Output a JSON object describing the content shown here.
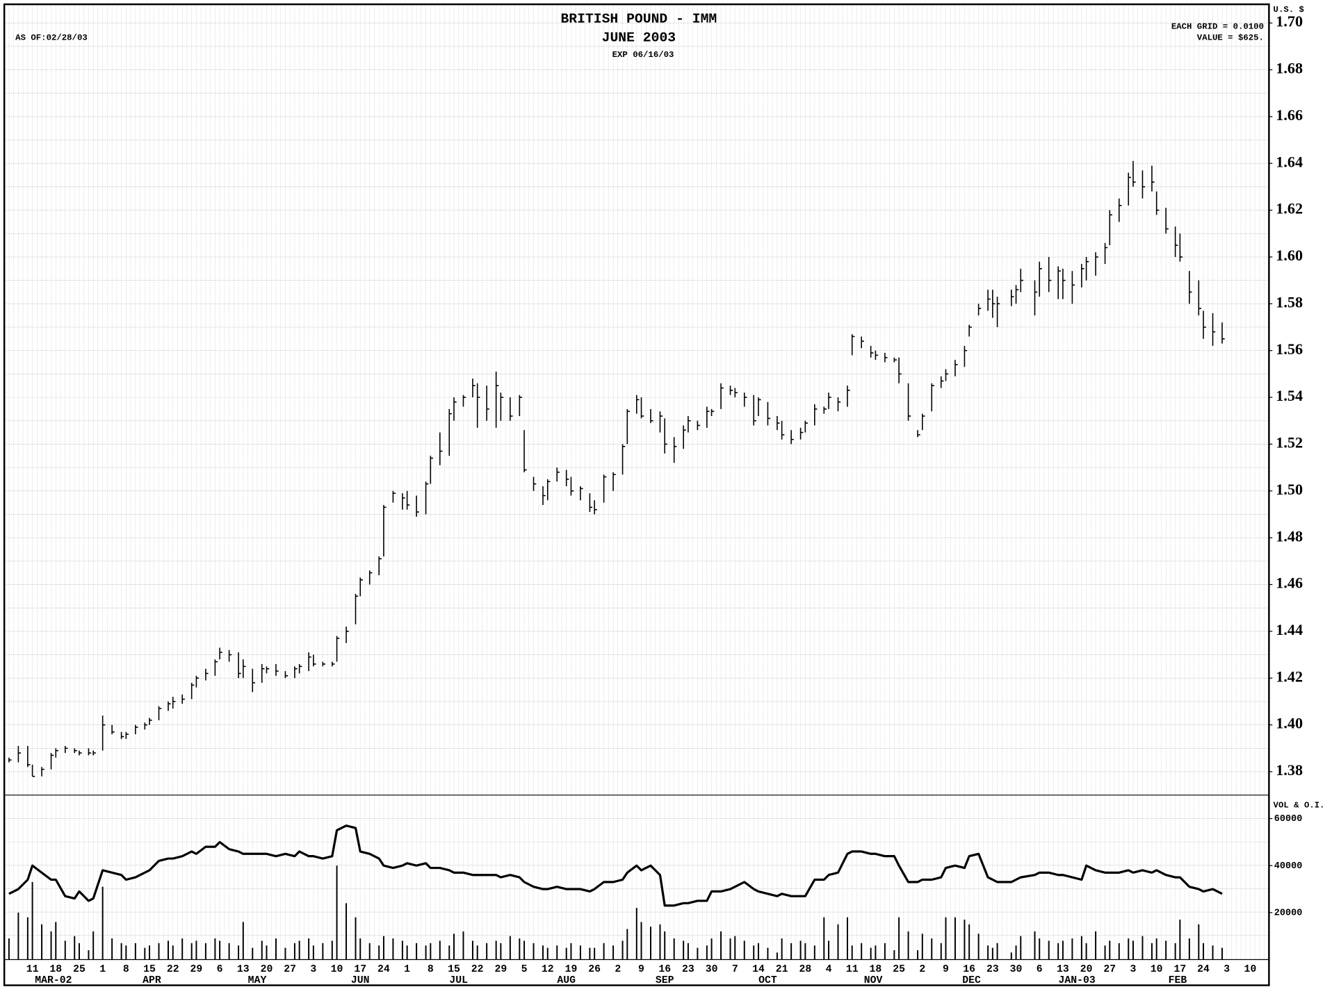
{
  "chart_data": {
    "type": "ohlc",
    "title": "BRITISH POUND - IMM",
    "subtitle": "JUNE 2003",
    "expiry": "EXP 06/16/03",
    "as_of": "AS OF:02/28/03",
    "grid_note": "EACH GRID = 0.0100",
    "value_note": "VALUE = $625.",
    "y_axis_label": "U.S. $",
    "volume_label": "VOL & O.I.",
    "color": "#000000",
    "grid": true,
    "grid_step": 0.01,
    "ylim": [
      1.37,
      1.708
    ],
    "yticks": [
      1.38,
      {
        "value": 1.4,
        "label": "1.40"
      },
      1.42,
      1.44,
      1.46,
      1.48,
      {
        "value": 1.5,
        "label": "1.50"
      },
      1.52,
      1.54,
      1.56,
      1.58,
      {
        "value": 1.6,
        "label": "1.60"
      },
      1.62,
      1.64,
      1.66,
      1.68,
      {
        "value": 1.7,
        "label": "1.70"
      }
    ],
    "vol_ylim": [
      0,
      70000
    ],
    "vol_yticks": [
      20000,
      40000,
      60000
    ],
    "xlim": [
      "2002-03-01",
      "2003-03-14"
    ],
    "xticks": [
      {
        "value": "2002-03-11",
        "label": "11"
      },
      {
        "value": "2002-03-18",
        "label": "18"
      },
      {
        "value": "2002-03-25",
        "label": "25"
      },
      {
        "value": "2002-04-01",
        "label": "1"
      },
      {
        "value": "2002-04-08",
        "label": "8"
      },
      {
        "value": "2002-04-15",
        "label": "15"
      },
      {
        "value": "2002-04-22",
        "label": "22"
      },
      {
        "value": "2002-04-29",
        "label": "29"
      },
      {
        "value": "2002-05-06",
        "label": "6"
      },
      {
        "value": "2002-05-13",
        "label": "13"
      },
      {
        "value": "2002-05-20",
        "label": "20"
      },
      {
        "value": "2002-05-27",
        "label": "27"
      },
      {
        "value": "2002-06-03",
        "label": "3"
      },
      {
        "value": "2002-06-10",
        "label": "10"
      },
      {
        "value": "2002-06-17",
        "label": "17"
      },
      {
        "value": "2002-06-24",
        "label": "24"
      },
      {
        "value": "2002-07-01",
        "label": "1"
      },
      {
        "value": "2002-07-08",
        "label": "8"
      },
      {
        "value": "2002-07-15",
        "label": "15"
      },
      {
        "value": "2002-07-22",
        "label": "22"
      },
      {
        "value": "2002-07-29",
        "label": "29"
      },
      {
        "value": "2002-08-05",
        "label": "5"
      },
      {
        "value": "2002-08-12",
        "label": "12"
      },
      {
        "value": "2002-08-19",
        "label": "19"
      },
      {
        "value": "2002-08-26",
        "label": "26"
      },
      {
        "value": "2002-09-02",
        "label": "2"
      },
      {
        "value": "2002-09-09",
        "label": "9"
      },
      {
        "value": "2002-09-16",
        "label": "16"
      },
      {
        "value": "2002-09-23",
        "label": "23"
      },
      {
        "value": "2002-09-30",
        "label": "30"
      },
      {
        "value": "2002-10-07",
        "label": "7"
      },
      {
        "value": "2002-10-14",
        "label": "14"
      },
      {
        "value": "2002-10-21",
        "label": "21"
      },
      {
        "value": "2002-10-28",
        "label": "28"
      },
      {
        "value": "2002-11-04",
        "label": "4"
      },
      {
        "value": "2002-11-11",
        "label": "11"
      },
      {
        "value": "2002-11-18",
        "label": "18"
      },
      {
        "value": "2002-11-25",
        "label": "25"
      },
      {
        "value": "2002-12-02",
        "label": "2"
      },
      {
        "value": "2002-12-09",
        "label": "9"
      },
      {
        "value": "2002-12-16",
        "label": "16"
      },
      {
        "value": "2002-12-23",
        "label": "23"
      },
      {
        "value": "2002-12-30",
        "label": "30"
      },
      {
        "value": "2003-01-06",
        "label": "6"
      },
      {
        "value": "2003-01-13",
        "label": "13"
      },
      {
        "value": "2003-01-20",
        "label": "20"
      },
      {
        "value": "2003-01-27",
        "label": "27"
      },
      {
        "value": "2003-02-03",
        "label": "3"
      },
      {
        "value": "2003-02-10",
        "label": "10"
      },
      {
        "value": "2003-02-17",
        "label": "17"
      },
      {
        "value": "2003-02-24",
        "label": "24"
      },
      {
        "value": "2003-03-03",
        "label": "3"
      },
      {
        "value": "2003-03-10",
        "label": "10"
      }
    ],
    "month_ticks": [
      {
        "value": "2002-03",
        "label": "MAR-02"
      },
      {
        "value": "2002-04",
        "label": "APR"
      },
      {
        "value": "2002-05",
        "label": "MAY"
      },
      {
        "value": "2002-06",
        "label": "JUN"
      },
      {
        "value": "2002-07",
        "label": "JUL"
      },
      {
        "value": "2002-08",
        "label": "AUG"
      },
      {
        "value": "2002-09",
        "label": "SEP"
      },
      {
        "value": "2002-10",
        "label": "OCT"
      },
      {
        "value": "2002-11",
        "label": "NOV"
      },
      {
        "value": "2002-12",
        "label": "DEC"
      },
      {
        "value": "2003-01",
        "label": "JAN-03"
      },
      {
        "value": "2003-02",
        "label": "FEB"
      }
    ],
    "x": [
      "2002-03-04",
      "2002-03-06",
      "2002-03-08",
      "2002-03-11",
      "2002-03-13",
      "2002-03-15",
      "2002-03-18",
      "2002-03-20",
      "2002-03-22",
      "2002-03-25",
      "2002-03-27",
      "2002-03-28",
      "2002-04-01",
      "2002-04-03",
      "2002-04-05",
      "2002-04-08",
      "2002-04-10",
      "2002-04-12",
      "2002-04-15",
      "2002-04-17",
      "2002-04-19",
      "2002-04-22",
      "2002-04-24",
      "2002-04-26",
      "2002-04-29",
      "2002-05-01",
      "2002-05-03",
      "2002-05-06",
      "2002-05-08",
      "2002-05-10",
      "2002-05-13",
      "2002-05-15",
      "2002-05-17",
      "2002-05-20",
      "2002-05-22",
      "2002-05-24",
      "2002-05-28",
      "2002-05-29",
      "2002-05-31",
      "2002-06-03",
      "2002-06-05",
      "2002-06-07",
      "2002-06-10",
      "2002-06-12",
      "2002-06-14",
      "2002-06-17",
      "2002-06-19",
      "2002-06-21",
      "2002-06-24",
      "2002-06-26",
      "2002-06-28",
      "2002-07-01",
      "2002-07-03",
      "2002-07-05",
      "2002-07-08",
      "2002-07-10",
      "2002-07-12",
      "2002-07-15",
      "2002-07-17",
      "2002-07-19",
      "2002-07-22",
      "2002-07-24",
      "2002-07-26",
      "2002-07-29",
      "2002-07-31",
      "2002-08-02",
      "2002-08-05",
      "2002-08-07",
      "2002-08-09",
      "2002-08-12",
      "2002-08-14",
      "2002-08-16",
      "2002-08-19",
      "2002-08-21",
      "2002-08-23",
      "2002-08-26",
      "2002-08-28",
      "2002-08-30",
      "2002-09-03",
      "2002-09-04",
      "2002-09-06",
      "2002-09-09",
      "2002-09-11",
      "2002-09-13",
      "2002-09-16",
      "2002-09-18",
      "2002-09-20",
      "2002-09-23",
      "2002-09-25",
      "2002-09-27",
      "2002-09-30",
      "2002-10-02",
      "2002-10-04",
      "2002-10-07",
      "2002-10-09",
      "2002-10-11",
      "2002-10-14",
      "2002-10-16",
      "2002-10-18",
      "2002-10-21",
      "2002-10-23",
      "2002-10-25",
      "2002-10-28",
      "2002-10-30",
      "2002-11-01",
      "2002-11-04",
      "2002-11-06",
      "2002-11-08",
      "2002-11-11",
      "2002-11-13",
      "2002-11-15",
      "2002-11-18",
      "2002-11-20",
      "2002-11-22",
      "2002-11-25",
      "2002-11-27",
      "2002-11-29",
      "2002-12-02",
      "2002-12-04",
      "2002-12-06",
      "2002-12-09",
      "2002-12-11",
      "2002-12-13",
      "2002-12-16",
      "2002-12-18",
      "2002-12-20",
      "2002-12-23",
      "2002-12-24",
      "2002-12-27",
      "2002-12-30",
      "2002-12-31",
      "2003-01-03",
      "2003-01-06",
      "2003-01-08",
      "2003-01-10",
      "2003-01-13",
      "2003-01-15",
      "2003-01-17",
      "2003-01-20",
      "2003-01-22",
      "2003-01-24",
      "2003-01-27",
      "2003-01-29",
      "2003-01-31",
      "2003-02-03",
      "2003-02-05",
      "2003-02-07",
      "2003-02-10",
      "2003-02-12",
      "2003-02-14",
      "2003-02-17",
      "2003-02-19",
      "2003-02-21",
      "2003-02-24",
      "2003-02-26",
      "2003-02-28"
    ],
    "high": [
      1.386,
      1.391,
      1.391,
      1.383,
      1.382,
      1.388,
      1.39,
      1.391,
      1.39,
      1.389,
      1.39,
      1.389,
      1.404,
      1.4,
      1.397,
      1.397,
      1.4,
      1.401,
      1.403,
      1.408,
      1.41,
      1.412,
      1.413,
      1.418,
      1.421,
      1.424,
      1.428,
      1.433,
      1.432,
      1.431,
      1.428,
      1.424,
      1.426,
      1.425,
      1.426,
      1.423,
      1.425,
      1.426,
      1.431,
      1.43,
      1.427,
      1.427,
      1.438,
      1.442,
      1.456,
      1.463,
      1.466,
      1.472,
      1.494,
      1.5,
      1.499,
      1.5,
      1.498,
      1.504,
      1.515,
      1.525,
      1.535,
      1.54,
      1.541,
      1.548,
      1.546,
      1.545,
      1.551,
      1.542,
      1.54,
      1.541,
      1.526,
      1.506,
      1.502,
      1.505,
      1.51,
      1.509,
      1.506,
      1.502,
      1.499,
      1.496,
      1.507,
      1.508,
      1.52,
      1.535,
      1.541,
      1.54,
      1.535,
      1.534,
      1.531,
      1.523,
      1.528,
      1.532,
      1.53,
      1.536,
      1.535,
      1.546,
      1.545,
      1.544,
      1.542,
      1.541,
      1.54,
      1.538,
      1.532,
      1.53,
      1.526,
      1.527,
      1.53,
      1.537,
      1.536,
      1.542,
      1.54,
      1.545,
      1.567,
      1.566,
      1.562,
      1.56,
      1.559,
      1.557,
      1.557,
      1.546,
      1.526,
      1.533,
      1.546,
      1.549,
      1.552,
      1.556,
      1.562,
      1.571,
      1.58,
      1.586,
      1.586,
      1.583,
      1.586,
      1.588,
      1.595,
      1.59,
      1.598,
      1.6,
      1.596,
      1.595,
      1.594,
      1.597,
      1.6,
      1.602,
      1.606,
      1.62,
      1.625,
      1.636,
      1.641,
      1.637,
      1.639,
      1.628,
      1.621,
      1.613,
      1.61,
      1.594,
      1.59,
      1.577,
      1.576,
      1.572
    ],
    "low": [
      1.384,
      1.384,
      1.382,
      1.378,
      1.378,
      1.381,
      1.386,
      1.388,
      1.388,
      1.387,
      1.387,
      1.387,
      1.389,
      1.396,
      1.394,
      1.394,
      1.396,
      1.398,
      1.4,
      1.402,
      1.406,
      1.407,
      1.409,
      1.411,
      1.416,
      1.419,
      1.421,
      1.428,
      1.427,
      1.42,
      1.42,
      1.414,
      1.418,
      1.422,
      1.421,
      1.42,
      1.42,
      1.422,
      1.423,
      1.425,
      1.425,
      1.425,
      1.427,
      1.435,
      1.443,
      1.455,
      1.46,
      1.464,
      1.472,
      1.495,
      1.492,
      1.492,
      1.489,
      1.49,
      1.503,
      1.511,
      1.515,
      1.53,
      1.536,
      1.54,
      1.527,
      1.53,
      1.527,
      1.53,
      1.53,
      1.532,
      1.508,
      1.5,
      1.494,
      1.496,
      1.504,
      1.502,
      1.498,
      1.496,
      1.491,
      1.49,
      1.495,
      1.5,
      1.507,
      1.52,
      1.533,
      1.531,
      1.529,
      1.525,
      1.516,
      1.512,
      1.518,
      1.525,
      1.526,
      1.527,
      1.532,
      1.535,
      1.541,
      1.54,
      1.536,
      1.528,
      1.532,
      1.528,
      1.526,
      1.522,
      1.52,
      1.522,
      1.525,
      1.528,
      1.533,
      1.535,
      1.534,
      1.536,
      1.558,
      1.561,
      1.557,
      1.556,
      1.555,
      1.555,
      1.546,
      1.53,
      1.523,
      1.526,
      1.534,
      1.544,
      1.547,
      1.549,
      1.553,
      1.566,
      1.575,
      1.577,
      1.574,
      1.57,
      1.579,
      1.58,
      1.585,
      1.575,
      1.583,
      1.585,
      1.582,
      1.582,
      1.58,
      1.587,
      1.59,
      1.592,
      1.597,
      1.605,
      1.615,
      1.622,
      1.63,
      1.625,
      1.628,
      1.618,
      1.61,
      1.6,
      1.598,
      1.58,
      1.575,
      1.565,
      1.562,
      1.563
    ],
    "close": [
      1.385,
      1.388,
      1.383,
      1.378,
      1.381,
      1.387,
      1.389,
      1.39,
      1.389,
      1.388,
      1.388,
      1.388,
      1.4,
      1.397,
      1.395,
      1.396,
      1.399,
      1.4,
      1.402,
      1.407,
      1.409,
      1.41,
      1.411,
      1.417,
      1.42,
      1.422,
      1.427,
      1.431,
      1.43,
      1.422,
      1.425,
      1.418,
      1.424,
      1.424,
      1.423,
      1.421,
      1.424,
      1.425,
      1.429,
      1.426,
      1.426,
      1.426,
      1.437,
      1.44,
      1.455,
      1.462,
      1.465,
      1.471,
      1.493,
      1.499,
      1.497,
      1.494,
      1.491,
      1.503,
      1.514,
      1.517,
      1.533,
      1.538,
      1.54,
      1.545,
      1.54,
      1.535,
      1.545,
      1.54,
      1.532,
      1.54,
      1.509,
      1.503,
      1.498,
      1.504,
      1.508,
      1.505,
      1.5,
      1.501,
      1.493,
      1.492,
      1.506,
      1.507,
      1.519,
      1.534,
      1.539,
      1.532,
      1.53,
      1.532,
      1.52,
      1.519,
      1.526,
      1.53,
      1.528,
      1.534,
      1.534,
      1.544,
      1.543,
      1.542,
      1.54,
      1.53,
      1.539,
      1.531,
      1.529,
      1.524,
      1.522,
      1.525,
      1.529,
      1.535,
      1.535,
      1.54,
      1.538,
      1.543,
      1.566,
      1.564,
      1.559,
      1.558,
      1.557,
      1.556,
      1.55,
      1.532,
      1.524,
      1.532,
      1.545,
      1.547,
      1.55,
      1.554,
      1.56,
      1.57,
      1.578,
      1.582,
      1.58,
      1.58,
      1.583,
      1.586,
      1.59,
      1.585,
      1.595,
      1.59,
      1.594,
      1.59,
      1.588,
      1.595,
      1.598,
      1.6,
      1.604,
      1.618,
      1.622,
      1.634,
      1.632,
      1.63,
      1.632,
      1.62,
      1.612,
      1.605,
      1.6,
      1.585,
      1.578,
      1.57,
      1.568,
      1.565
    ],
    "volume": [
      9000,
      20000,
      18000,
      33000,
      15000,
      12000,
      16000,
      8000,
      10000,
      7000,
      4000,
      12000,
      31000,
      9000,
      7000,
      6000,
      7000,
      5000,
      6000,
      7000,
      8000,
      6000,
      9000,
      7000,
      8000,
      7000,
      9000,
      8000,
      7000,
      6000,
      16000,
      5000,
      8000,
      6000,
      9000,
      5000,
      7000,
      8000,
      9000,
      6000,
      7000,
      8000,
      40000,
      24000,
      18000,
      9000,
      7000,
      6000,
      10000,
      9000,
      8000,
      6000,
      7000,
      6000,
      7000,
      8000,
      6000,
      11000,
      12000,
      8000,
      6000,
      7000,
      8000,
      7000,
      10000,
      9000,
      8000,
      7000,
      6000,
      5000,
      6000,
      5000,
      7000,
      6000,
      5000,
      5000,
      7000,
      6000,
      8000,
      13000,
      22000,
      16000,
      14000,
      15000,
      12000,
      9000,
      8000,
      7000,
      5000,
      6000,
      9000,
      12000,
      9000,
      10000,
      8000,
      6000,
      7000,
      5000,
      3000,
      9000,
      7000,
      8000,
      7000,
      6000,
      18000,
      8000,
      15000,
      18000,
      6000,
      7000,
      5000,
      6000,
      7000,
      4000,
      18000,
      12000,
      4000,
      11000,
      9000,
      7000,
      18000,
      18000,
      17000,
      15000,
      11000,
      6000,
      5000,
      7000,
      3000,
      6000,
      10000,
      12000,
      9000,
      8000,
      7000,
      8000,
      9000,
      10000,
      7000,
      12000,
      6000,
      8000,
      7000,
      9000,
      8000,
      10000,
      7000,
      9000,
      8000,
      7000,
      17000,
      9000,
      15000,
      7000,
      6000,
      5000
    ],
    "open_interest": [
      28000,
      30000,
      34000,
      40000,
      37000,
      34000,
      34000,
      27000,
      26000,
      29000,
      25000,
      26000,
      38000,
      37000,
      36000,
      34000,
      35000,
      37000,
      38000,
      42000,
      43000,
      43000,
      44000,
      46000,
      45000,
      48000,
      48000,
      50000,
      47000,
      46000,
      45000,
      45000,
      45000,
      45000,
      44000,
      45000,
      44000,
      46000,
      44000,
      44000,
      43000,
      44000,
      55000,
      57000,
      56000,
      46000,
      45000,
      43000,
      40000,
      39000,
      40000,
      41000,
      40000,
      41000,
      39000,
      39000,
      38000,
      37000,
      37000,
      36000,
      36000,
      36000,
      36000,
      35000,
      36000,
      35000,
      33000,
      31000,
      30000,
      30000,
      31000,
      30000,
      30000,
      30000,
      29000,
      30000,
      33000,
      33000,
      34000,
      37000,
      40000,
      38000,
      40000,
      36000,
      23000,
      23000,
      24000,
      24000,
      25000,
      25000,
      29000,
      29000,
      30000,
      31000,
      33000,
      30000,
      29000,
      28000,
      27000,
      28000,
      27000,
      27000,
      27000,
      34000,
      34000,
      36000,
      37000,
      45000,
      46000,
      46000,
      45000,
      45000,
      44000,
      44000,
      40000,
      33000,
      33000,
      34000,
      34000,
      35000,
      39000,
      40000,
      39000,
      44000,
      45000,
      35000,
      34000,
      33000,
      33000,
      34000,
      35000,
      36000,
      37000,
      37000,
      36000,
      36000,
      35000,
      34000,
      40000,
      38000,
      37000,
      37000,
      37000,
      38000,
      37000,
      38000,
      37000,
      38000,
      36000,
      35000,
      35000,
      31000,
      30000,
      29000,
      30000,
      28000
    ]
  }
}
